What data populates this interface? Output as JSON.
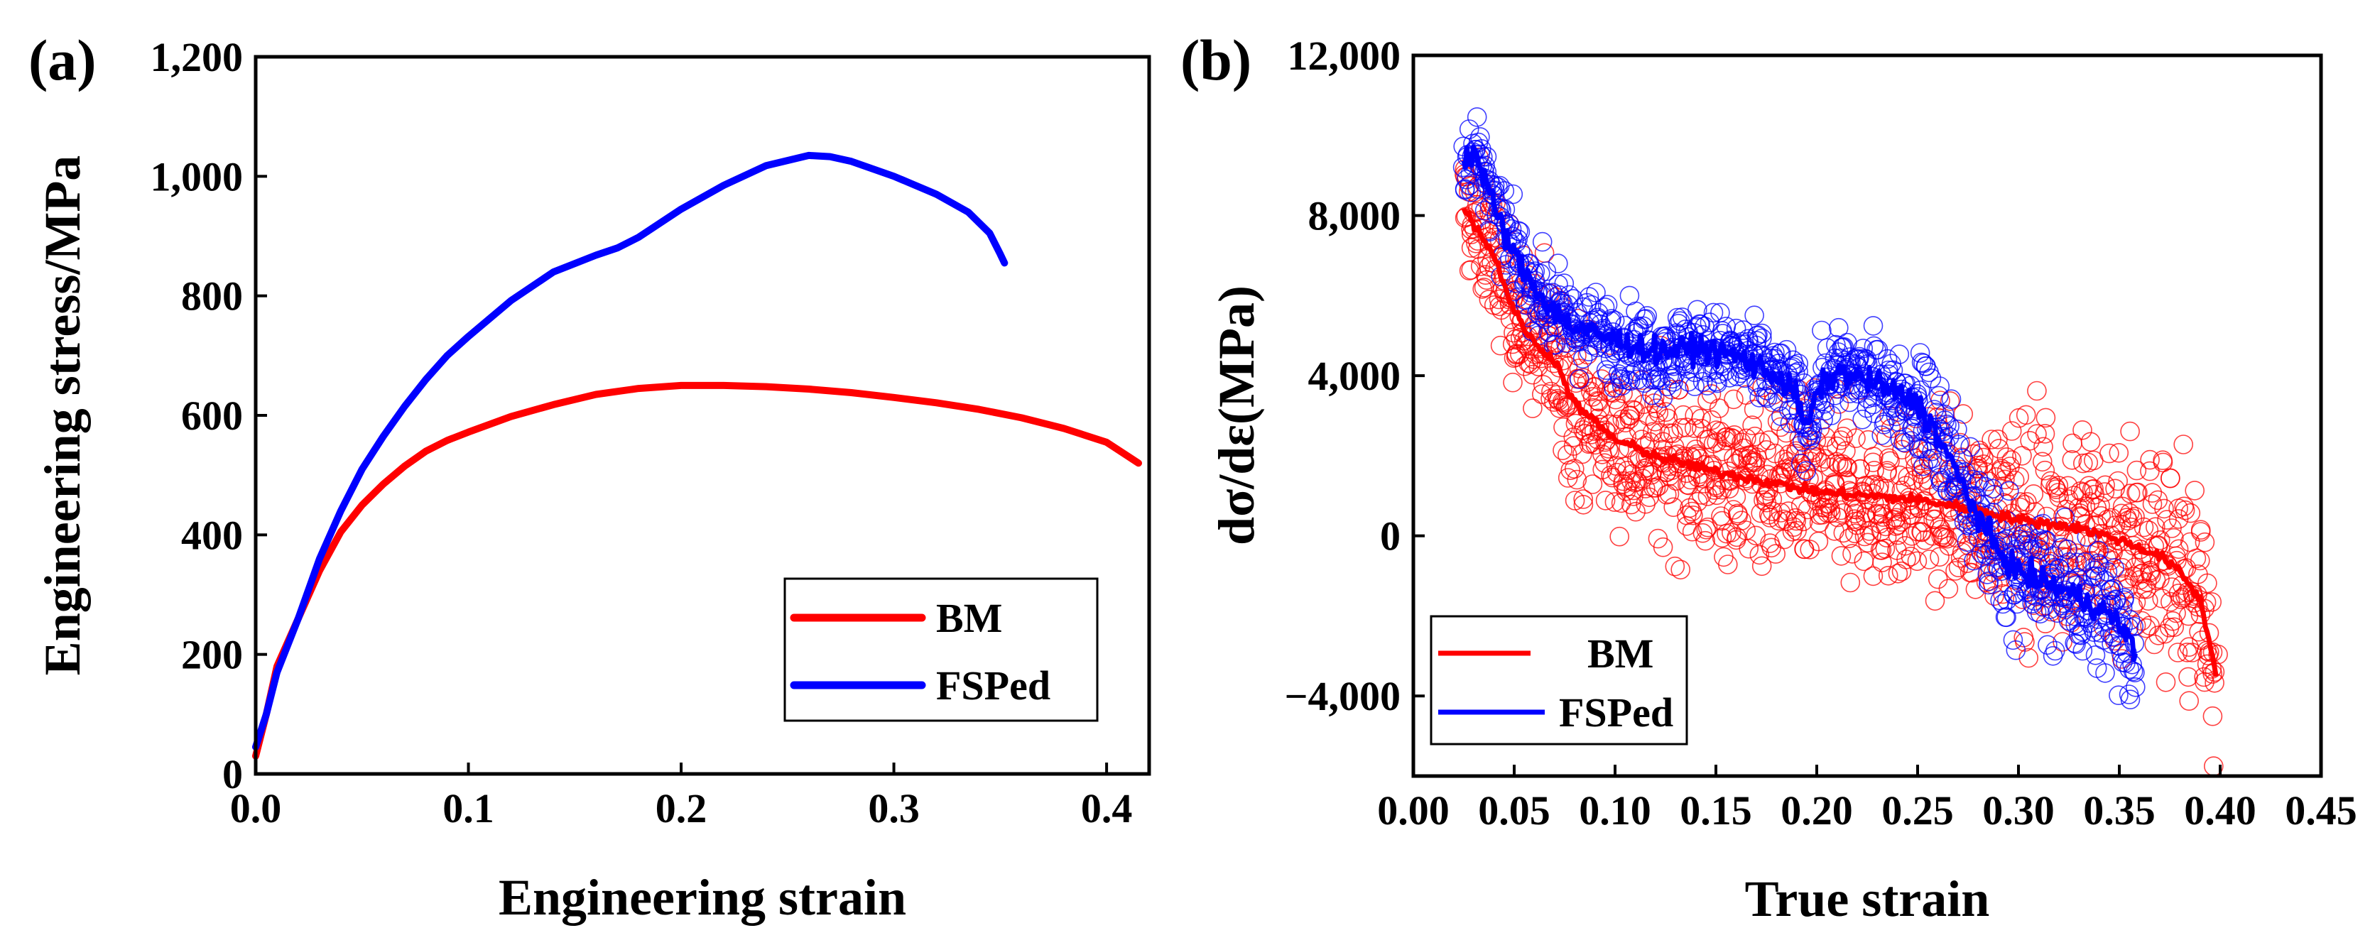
{
  "chart_data": [
    {
      "panel_label": "(a)",
      "type": "line",
      "xlabel": "Engineering strain",
      "ylabel": "Engineering stress/MPa",
      "xlim": [
        0.0,
        0.42
      ],
      "ylim": [
        0,
        1200
      ],
      "xticks": [
        0.0,
        0.1,
        0.2,
        0.3,
        0.4
      ],
      "xtick_labels": [
        "0.0",
        "0.1",
        "0.2",
        "0.3",
        "0.4"
      ],
      "yticks": [
        0,
        200,
        400,
        600,
        800,
        1000,
        1200
      ],
      "ytick_labels": [
        "0",
        "200",
        "400",
        "600",
        "800",
        "1,000",
        "1,200"
      ],
      "legend_position": "lower-right",
      "series": [
        {
          "name": "BM",
          "color": "#ff0000",
          "points": [
            [
              0.0,
              30
            ],
            [
              0.005,
              100
            ],
            [
              0.01,
              180
            ],
            [
              0.02,
              260
            ],
            [
              0.03,
              340
            ],
            [
              0.04,
              405
            ],
            [
              0.05,
              450
            ],
            [
              0.06,
              485
            ],
            [
              0.07,
              515
            ],
            [
              0.08,
              540
            ],
            [
              0.09,
              558
            ],
            [
              0.1,
              572
            ],
            [
              0.12,
              598
            ],
            [
              0.14,
              618
            ],
            [
              0.16,
              635
            ],
            [
              0.18,
              645
            ],
            [
              0.2,
              650
            ],
            [
              0.22,
              650
            ],
            [
              0.24,
              648
            ],
            [
              0.26,
              644
            ],
            [
              0.28,
              638
            ],
            [
              0.3,
              630
            ],
            [
              0.32,
              621
            ],
            [
              0.34,
              610
            ],
            [
              0.36,
              596
            ],
            [
              0.38,
              578
            ],
            [
              0.4,
              555
            ],
            [
              0.415,
              520
            ]
          ]
        },
        {
          "name": "FSPed",
          "color": "#0000ff",
          "points": [
            [
              0.0,
              45
            ],
            [
              0.005,
              100
            ],
            [
              0.01,
              170
            ],
            [
              0.02,
              260
            ],
            [
              0.03,
              360
            ],
            [
              0.04,
              440
            ],
            [
              0.05,
              510
            ],
            [
              0.06,
              565
            ],
            [
              0.07,
              615
            ],
            [
              0.08,
              660
            ],
            [
              0.09,
              700
            ],
            [
              0.1,
              732
            ],
            [
              0.12,
              792
            ],
            [
              0.14,
              840
            ],
            [
              0.16,
              868
            ],
            [
              0.17,
              880
            ],
            [
              0.18,
              898
            ],
            [
              0.2,
              945
            ],
            [
              0.22,
              985
            ],
            [
              0.24,
              1018
            ],
            [
              0.26,
              1035
            ],
            [
              0.27,
              1033
            ],
            [
              0.28,
              1025
            ],
            [
              0.3,
              1000
            ],
            [
              0.32,
              970
            ],
            [
              0.335,
              940
            ],
            [
              0.345,
              905
            ],
            [
              0.35,
              870
            ],
            [
              0.352,
              855
            ]
          ]
        }
      ]
    },
    {
      "panel_label": "(b)",
      "type": "scatter",
      "xlabel": "True strain",
      "ylabel": "dσ/dε(MPa)",
      "xlim": [
        0.0,
        0.45
      ],
      "ylim": [
        -6000,
        12000
      ],
      "xticks": [
        0.0,
        0.05,
        0.1,
        0.15,
        0.2,
        0.25,
        0.3,
        0.35,
        0.4,
        0.45
      ],
      "xtick_labels": [
        "0.00",
        "0.05",
        "0.10",
        "0.15",
        "0.20",
        "0.25",
        "0.30",
        "0.35",
        "0.40",
        "0.45"
      ],
      "yticks": [
        -4000,
        0,
        4000,
        8000,
        12000
      ],
      "ytick_labels": [
        "−4,000",
        "0",
        "4,000",
        "8,000",
        "12,000"
      ],
      "legend_position": "lower-left",
      "series": [
        {
          "name": "BM",
          "color": "#ff0000",
          "trend": [
            [
              0.025,
              8200
            ],
            [
              0.03,
              7800
            ],
            [
              0.04,
              7000
            ],
            [
              0.05,
              5600
            ],
            [
              0.06,
              4800
            ],
            [
              0.07,
              4400
            ],
            [
              0.08,
              3300
            ],
            [
              0.1,
              2400
            ],
            [
              0.12,
              2000
            ],
            [
              0.15,
              1600
            ],
            [
              0.2,
              1100
            ],
            [
              0.25,
              900
            ],
            [
              0.28,
              650
            ],
            [
              0.3,
              400
            ],
            [
              0.33,
              200
            ],
            [
              0.35,
              -100
            ],
            [
              0.37,
              -500
            ],
            [
              0.38,
              -900
            ],
            [
              0.39,
              -1600
            ],
            [
              0.395,
              -2700
            ],
            [
              0.398,
              -3500
            ]
          ]
        },
        {
          "name": "FSPed",
          "color": "#0000ff",
          "trend": [
            [
              0.025,
              9400
            ],
            [
              0.03,
              9600
            ],
            [
              0.035,
              9000
            ],
            [
              0.04,
              8200
            ],
            [
              0.05,
              7000
            ],
            [
              0.06,
              6200
            ],
            [
              0.07,
              5600
            ],
            [
              0.08,
              5200
            ],
            [
              0.1,
              4900
            ],
            [
              0.12,
              4600
            ],
            [
              0.14,
              4700
            ],
            [
              0.16,
              4500
            ],
            [
              0.18,
              4000
            ],
            [
              0.19,
              3500
            ],
            [
              0.195,
              2600
            ],
            [
              0.2,
              3600
            ],
            [
              0.21,
              4100
            ],
            [
              0.23,
              3800
            ],
            [
              0.25,
              3300
            ],
            [
              0.26,
              2500
            ],
            [
              0.27,
              1500
            ],
            [
              0.28,
              500
            ],
            [
              0.29,
              -400
            ],
            [
              0.3,
              -900
            ],
            [
              0.32,
              -1300
            ],
            [
              0.34,
              -1800
            ],
            [
              0.35,
              -2200
            ],
            [
              0.358,
              -2900
            ]
          ]
        }
      ]
    }
  ]
}
